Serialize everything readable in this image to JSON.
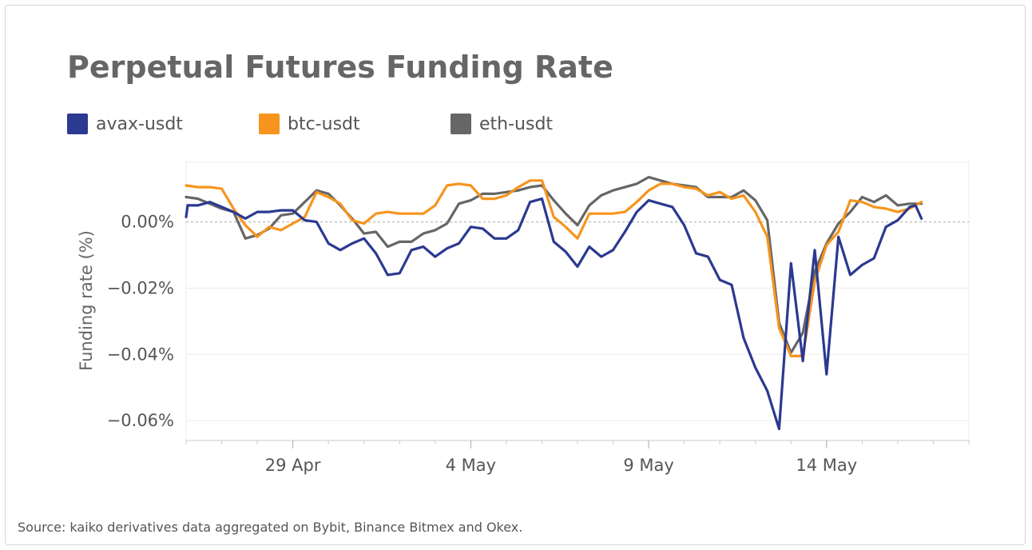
{
  "title": "Perpetual Futures Funding Rate",
  "source": "Source: kaiko derivatives data aggregated on Bybit, Binance Bitmex and Okex.",
  "chart_data": {
    "type": "line",
    "title": "Perpetual Futures Funding Rate",
    "xlabel": "",
    "ylabel": "Funding rate (%)",
    "x_unit": "date (2021)",
    "xlim": [
      "2021-04-26",
      "2021-05-18"
    ],
    "ylim": [
      -0.066,
      0.018
    ],
    "y_ticks": [
      0.0,
      -0.02,
      -0.04,
      -0.06
    ],
    "y_tick_labels": [
      "0.00%",
      "−0.02%",
      "−0.04%",
      "−0.06%"
    ],
    "x_ticks": [
      "2021-04-29",
      "2021-05-04",
      "2021-05-09",
      "2021-05-14"
    ],
    "x_tick_labels": [
      "29 Apr",
      "4 May",
      "9 May",
      "14 May"
    ],
    "grid": true,
    "zero_line": true,
    "legend": "top-left",
    "series": [
      {
        "name": "avax-usdt",
        "color": "#2b3990",
        "points": [
          [
            "2021-04-26 00:00",
            0.0015
          ],
          [
            "2021-04-26 01:00",
            0.005
          ],
          [
            "2021-04-26 08:00",
            0.005
          ],
          [
            "2021-04-26 16:00",
            0.006
          ],
          [
            "2021-04-27 00:00",
            0.0045
          ],
          [
            "2021-04-27 08:00",
            0.003
          ],
          [
            "2021-04-27 16:00",
            0.001
          ],
          [
            "2021-04-28 00:00",
            0.003
          ],
          [
            "2021-04-28 08:00",
            0.003
          ],
          [
            "2021-04-28 16:00",
            0.0035
          ],
          [
            "2021-04-29 00:00",
            0.0035
          ],
          [
            "2021-04-29 08:00",
            0.0005
          ],
          [
            "2021-04-29 16:00",
            0.0
          ],
          [
            "2021-04-30 00:00",
            -0.0065
          ],
          [
            "2021-04-30 08:00",
            -0.0085
          ],
          [
            "2021-04-30 16:00",
            -0.0065
          ],
          [
            "2021-05-01 00:00",
            -0.005
          ],
          [
            "2021-05-01 08:00",
            -0.0095
          ],
          [
            "2021-05-01 16:00",
            -0.016
          ],
          [
            "2021-05-02 00:00",
            -0.0155
          ],
          [
            "2021-05-02 08:00",
            -0.0085
          ],
          [
            "2021-05-02 16:00",
            -0.0075
          ],
          [
            "2021-05-03 00:00",
            -0.0105
          ],
          [
            "2021-05-03 08:00",
            -0.008
          ],
          [
            "2021-05-03 16:00",
            -0.0065
          ],
          [
            "2021-05-04 00:00",
            -0.0015
          ],
          [
            "2021-05-04 08:00",
            -0.002
          ],
          [
            "2021-05-04 16:00",
            -0.005
          ],
          [
            "2021-05-05 00:00",
            -0.005
          ],
          [
            "2021-05-05 08:00",
            -0.0025
          ],
          [
            "2021-05-05 16:00",
            0.006
          ],
          [
            "2021-05-06 00:00",
            0.007
          ],
          [
            "2021-05-06 08:00",
            -0.006
          ],
          [
            "2021-05-06 16:00",
            -0.009
          ],
          [
            "2021-05-07 00:00",
            -0.0135
          ],
          [
            "2021-05-07 08:00",
            -0.0075
          ],
          [
            "2021-05-07 16:00",
            -0.0105
          ],
          [
            "2021-05-08 00:00",
            -0.0085
          ],
          [
            "2021-05-08 08:00",
            -0.003
          ],
          [
            "2021-05-08 16:00",
            0.003
          ],
          [
            "2021-05-09 00:00",
            0.0065
          ],
          [
            "2021-05-09 08:00",
            0.0055
          ],
          [
            "2021-05-09 16:00",
            0.0045
          ],
          [
            "2021-05-10 00:00",
            -0.001
          ],
          [
            "2021-05-10 08:00",
            -0.0095
          ],
          [
            "2021-05-10 16:00",
            -0.0105
          ],
          [
            "2021-05-11 00:00",
            -0.0175
          ],
          [
            "2021-05-11 08:00",
            -0.019
          ],
          [
            "2021-05-11 16:00",
            -0.035
          ],
          [
            "2021-05-12 00:00",
            -0.044
          ],
          [
            "2021-05-12 08:00",
            -0.051
          ],
          [
            "2021-05-12 16:00",
            -0.0625
          ],
          [
            "2021-05-13 00:00",
            -0.0125
          ],
          [
            "2021-05-13 08:00",
            -0.042
          ],
          [
            "2021-05-13 16:00",
            -0.0085
          ],
          [
            "2021-05-14 00:00",
            -0.046
          ],
          [
            "2021-05-14 08:00",
            -0.0045
          ],
          [
            "2021-05-14 16:00",
            -0.016
          ],
          [
            "2021-05-15 00:00",
            -0.013
          ],
          [
            "2021-05-15 08:00",
            -0.011
          ],
          [
            "2021-05-15 16:00",
            -0.0015
          ],
          [
            "2021-05-16 00:00",
            0.0005
          ],
          [
            "2021-05-16 08:00",
            0.0045
          ],
          [
            "2021-05-16 12:00",
            0.005
          ],
          [
            "2021-05-16 16:00",
            0.001
          ]
        ]
      },
      {
        "name": "btc-usdt",
        "color": "#f7941d",
        "points": [
          [
            "2021-04-26 00:00",
            0.011
          ],
          [
            "2021-04-26 08:00",
            0.0105
          ],
          [
            "2021-04-26 16:00",
            0.0105
          ],
          [
            "2021-04-27 00:00",
            0.01
          ],
          [
            "2021-04-27 08:00",
            0.004
          ],
          [
            "2021-04-27 16:00",
            -0.001
          ],
          [
            "2021-04-28 00:00",
            -0.0045
          ],
          [
            "2021-04-28 08:00",
            -0.0015
          ],
          [
            "2021-04-28 16:00",
            -0.0025
          ],
          [
            "2021-04-29 00:00",
            -0.0005
          ],
          [
            "2021-04-29 08:00",
            0.0015
          ],
          [
            "2021-04-29 16:00",
            0.009
          ],
          [
            "2021-04-30 00:00",
            0.0075
          ],
          [
            "2021-04-30 08:00",
            0.0055
          ],
          [
            "2021-04-30 16:00",
            0.0005
          ],
          [
            "2021-05-01 00:00",
            -0.0005
          ],
          [
            "2021-05-01 08:00",
            0.0025
          ],
          [
            "2021-05-01 16:00",
            0.003
          ],
          [
            "2021-05-02 00:00",
            0.0025
          ],
          [
            "2021-05-02 08:00",
            0.0025
          ],
          [
            "2021-05-02 16:00",
            0.0025
          ],
          [
            "2021-05-03 00:00",
            0.005
          ],
          [
            "2021-05-03 08:00",
            0.011
          ],
          [
            "2021-05-03 16:00",
            0.0115
          ],
          [
            "2021-05-04 00:00",
            0.011
          ],
          [
            "2021-05-04 08:00",
            0.007
          ],
          [
            "2021-05-04 16:00",
            0.007
          ],
          [
            "2021-05-05 00:00",
            0.008
          ],
          [
            "2021-05-05 08:00",
            0.0105
          ],
          [
            "2021-05-05 16:00",
            0.0125
          ],
          [
            "2021-05-06 00:00",
            0.0125
          ],
          [
            "2021-05-06 08:00",
            0.0015
          ],
          [
            "2021-05-06 16:00",
            -0.0015
          ],
          [
            "2021-05-07 00:00",
            -0.005
          ],
          [
            "2021-05-07 08:00",
            0.0025
          ],
          [
            "2021-05-07 16:00",
            0.0025
          ],
          [
            "2021-05-08 00:00",
            0.0025
          ],
          [
            "2021-05-08 08:00",
            0.003
          ],
          [
            "2021-05-08 16:00",
            0.006
          ],
          [
            "2021-05-09 00:00",
            0.0095
          ],
          [
            "2021-05-09 08:00",
            0.0115
          ],
          [
            "2021-05-09 16:00",
            0.0115
          ],
          [
            "2021-05-10 00:00",
            0.0105
          ],
          [
            "2021-05-10 08:00",
            0.01
          ],
          [
            "2021-05-10 16:00",
            0.008
          ],
          [
            "2021-05-11 00:00",
            0.009
          ],
          [
            "2021-05-11 08:00",
            0.007
          ],
          [
            "2021-05-11 16:00",
            0.008
          ],
          [
            "2021-05-12 00:00",
            0.003
          ],
          [
            "2021-05-12 08:00",
            -0.0045
          ],
          [
            "2021-05-12 16:00",
            -0.032
          ],
          [
            "2021-05-13 00:00",
            -0.0405
          ],
          [
            "2021-05-13 08:00",
            -0.0405
          ],
          [
            "2021-05-13 16:00",
            -0.018
          ],
          [
            "2021-05-14 00:00",
            -0.007
          ],
          [
            "2021-05-14 08:00",
            -0.003
          ],
          [
            "2021-05-14 16:00",
            0.0065
          ],
          [
            "2021-05-15 00:00",
            0.006
          ],
          [
            "2021-05-15 08:00",
            0.0045
          ],
          [
            "2021-05-15 16:00",
            0.004
          ],
          [
            "2021-05-16 00:00",
            0.003
          ],
          [
            "2021-05-16 08:00",
            0.004
          ],
          [
            "2021-05-16 16:00",
            0.006
          ]
        ]
      },
      {
        "name": "eth-usdt",
        "color": "#666666",
        "points": [
          [
            "2021-04-26 00:00",
            0.0075
          ],
          [
            "2021-04-26 08:00",
            0.007
          ],
          [
            "2021-04-26 16:00",
            0.0055
          ],
          [
            "2021-04-27 00:00",
            0.004
          ],
          [
            "2021-04-27 08:00",
            0.003
          ],
          [
            "2021-04-27 16:00",
            -0.005
          ],
          [
            "2021-04-28 00:00",
            -0.004
          ],
          [
            "2021-04-28 08:00",
            -0.002
          ],
          [
            "2021-04-28 16:00",
            0.002
          ],
          [
            "2021-04-29 00:00",
            0.0025
          ],
          [
            "2021-04-29 08:00",
            0.006
          ],
          [
            "2021-04-29 16:00",
            0.0095
          ],
          [
            "2021-04-30 00:00",
            0.0085
          ],
          [
            "2021-04-30 08:00",
            0.005
          ],
          [
            "2021-04-30 16:00",
            0.001
          ],
          [
            "2021-05-01 00:00",
            -0.0035
          ],
          [
            "2021-05-01 08:00",
            -0.003
          ],
          [
            "2021-05-01 16:00",
            -0.0075
          ],
          [
            "2021-05-02 00:00",
            -0.006
          ],
          [
            "2021-05-02 08:00",
            -0.006
          ],
          [
            "2021-05-02 16:00",
            -0.0035
          ],
          [
            "2021-05-03 00:00",
            -0.0025
          ],
          [
            "2021-05-03 08:00",
            -0.0005
          ],
          [
            "2021-05-03 16:00",
            0.0055
          ],
          [
            "2021-05-04 00:00",
            0.0065
          ],
          [
            "2021-05-04 08:00",
            0.0085
          ],
          [
            "2021-05-04 16:00",
            0.0085
          ],
          [
            "2021-05-05 00:00",
            0.009
          ],
          [
            "2021-05-05 08:00",
            0.0095
          ],
          [
            "2021-05-05 16:00",
            0.0105
          ],
          [
            "2021-05-06 00:00",
            0.011
          ],
          [
            "2021-05-06 08:00",
            0.0065
          ],
          [
            "2021-05-06 16:00",
            0.0025
          ],
          [
            "2021-05-07 00:00",
            -0.001
          ],
          [
            "2021-05-07 08:00",
            0.005
          ],
          [
            "2021-05-07 16:00",
            0.008
          ],
          [
            "2021-05-08 00:00",
            0.0095
          ],
          [
            "2021-05-08 08:00",
            0.0105
          ],
          [
            "2021-05-08 16:00",
            0.0115
          ],
          [
            "2021-05-09 00:00",
            0.0135
          ],
          [
            "2021-05-09 08:00",
            0.0125
          ],
          [
            "2021-05-09 16:00",
            0.0115
          ],
          [
            "2021-05-10 00:00",
            0.011
          ],
          [
            "2021-05-10 08:00",
            0.0105
          ],
          [
            "2021-05-10 16:00",
            0.0075
          ],
          [
            "2021-05-11 00:00",
            0.0075
          ],
          [
            "2021-05-11 08:00",
            0.0075
          ],
          [
            "2021-05-11 16:00",
            0.0095
          ],
          [
            "2021-05-12 00:00",
            0.0065
          ],
          [
            "2021-05-12 08:00",
            0.0005
          ],
          [
            "2021-05-12 16:00",
            -0.0305
          ],
          [
            "2021-05-13 00:00",
            -0.0395
          ],
          [
            "2021-05-13 08:00",
            -0.0335
          ],
          [
            "2021-05-13 16:00",
            -0.015
          ],
          [
            "2021-05-14 00:00",
            -0.0065
          ],
          [
            "2021-05-14 08:00",
            -0.0005
          ],
          [
            "2021-05-14 16:00",
            0.003
          ],
          [
            "2021-05-15 00:00",
            0.0075
          ],
          [
            "2021-05-15 08:00",
            0.006
          ],
          [
            "2021-05-15 16:00",
            0.008
          ],
          [
            "2021-05-16 00:00",
            0.005
          ],
          [
            "2021-05-16 08:00",
            0.0055
          ],
          [
            "2021-05-16 16:00",
            0.0055
          ]
        ]
      }
    ]
  }
}
